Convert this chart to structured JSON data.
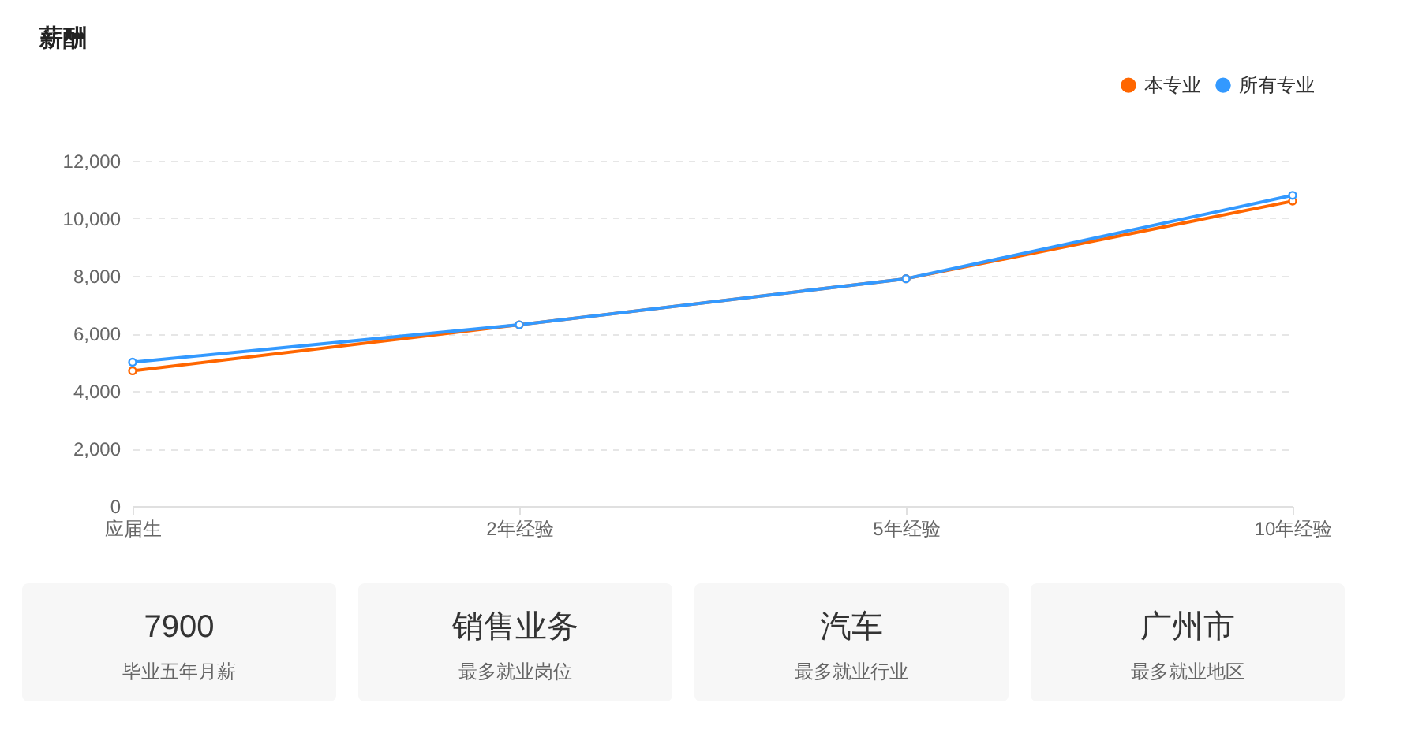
{
  "chart_data": [
    {
      "type": "line",
      "title": "薪酬",
      "categories": [
        "应届生",
        "2年经验",
        "5年经验",
        "10年经验"
      ],
      "series": [
        {
          "name": "本专业",
          "color": "#ff6600",
          "values": [
            4700,
            6300,
            7900,
            10600
          ]
        },
        {
          "name": "所有专业",
          "color": "#3399ff",
          "values": [
            5000,
            6300,
            7900,
            10800
          ]
        }
      ],
      "ylim": [
        0,
        12000
      ],
      "yticks": [
        0,
        {
          "value": 2000,
          "label": "2,000"
        },
        {
          "value": 4000,
          "label": "4,000"
        },
        {
          "value": 6000,
          "label": "6,000"
        },
        {
          "value": 8000,
          "label": "8,000"
        },
        {
          "value": 10000,
          "label": "10,000"
        },
        {
          "value": 12000,
          "label": "12,000"
        }
      ],
      "grid": "y",
      "legend": "top right",
      "marker": "circle"
    },
    {
      "type": "other",
      "annotations": [
        "7900",
        "毕业五年月薪"
      ]
    },
    {
      "type": "other",
      "annotations": [
        "销售业务",
        "最多就业岗位"
      ]
    },
    {
      "type": "other",
      "annotations": [
        "汽车",
        "最多就业行业"
      ]
    },
    {
      "type": "other",
      "annotations": [
        "广州市",
        "最多就业地区"
      ]
    }
  ]
}
